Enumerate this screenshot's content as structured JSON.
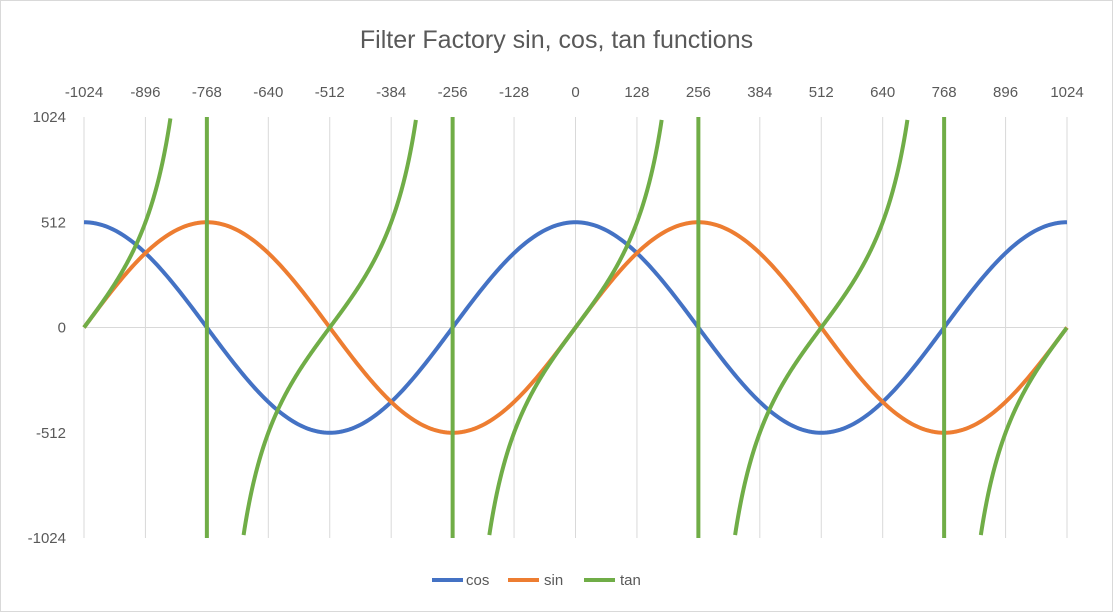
{
  "chart_data": {
    "type": "line",
    "title": "Filter Factory sin, cos, tan functions",
    "xlabel": "",
    "ylabel": "",
    "x_ticks": [
      -1024,
      -896,
      -768,
      -640,
      -512,
      -384,
      -256,
      -128,
      0,
      128,
      256,
      384,
      512,
      640,
      768,
      896,
      1024
    ],
    "y_ticks": [
      1024,
      512,
      0,
      -512,
      -1024
    ],
    "xlim": [
      -1024,
      1024
    ],
    "ylim": [
      -1024,
      1024
    ],
    "x_axis_position": "top",
    "grid": "vertical",
    "legend_position": "bottom",
    "series": [
      {
        "name": "cos",
        "color": "#4472c4",
        "function": "512*cos(2*pi*x/1024)",
        "amplitude": 512,
        "period": 1024,
        "sample_x": [
          -1024,
          -768,
          -512,
          -256,
          0,
          256,
          512,
          768,
          1024
        ],
        "sample_y": [
          512,
          0,
          -512,
          0,
          512,
          0,
          -512,
          0,
          512
        ]
      },
      {
        "name": "sin",
        "color": "#ed7d31",
        "function": "512*sin(2*pi*x/1024)",
        "amplitude": 512,
        "period": 1024,
        "sample_x": [
          -1024,
          -768,
          -512,
          -256,
          0,
          256,
          512,
          768,
          1024
        ],
        "sample_y": [
          0,
          512,
          0,
          -512,
          0,
          512,
          0,
          -512,
          0
        ]
      },
      {
        "name": "tan",
        "color": "#70ad47",
        "function": "512*tan(2*pi*x/1024)",
        "period": 512,
        "sample_x": [
          -1024,
          -896,
          -768,
          -512,
          -256,
          0,
          256,
          512,
          768,
          1024
        ],
        "sample_y": [
          0,
          512,
          null,
          0,
          null,
          0,
          null,
          0,
          null,
          0
        ]
      }
    ]
  }
}
